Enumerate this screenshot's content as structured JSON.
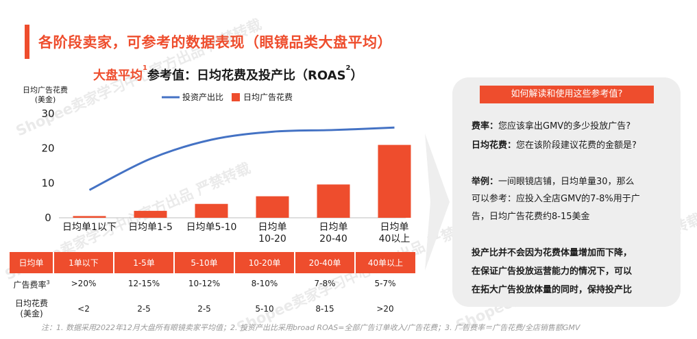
{
  "page_title": "各阶段卖家，可参考的数据表现（眼镜品类大盘平均）",
  "chart_title": {
    "accent": "大盘平均",
    "sup1": "1",
    "rest": "参考值：日均花费及投产比（ROAS",
    "sup2": "2",
    "close": "）"
  },
  "watermark": "Shopee卖家学习中心官方出品 严禁转载",
  "chart_data": {
    "type": "bar",
    "ylabel": [
      "日均广告花费",
      "(美金)"
    ],
    "ylim": [
      0,
      30
    ],
    "yticks": [
      "0",
      "10",
      "20",
      "30"
    ],
    "categories": [
      [
        "日均单1以下"
      ],
      [
        "日均单1-5"
      ],
      [
        "日均单5-10"
      ],
      [
        "日均单",
        "10-20"
      ],
      [
        "日均单",
        "20-40"
      ],
      [
        "日均单",
        "40以上"
      ]
    ],
    "series": [
      {
        "name": "日均广告花费",
        "type": "bar",
        "color": "#ee4d2d",
        "values": [
          0.5,
          2,
          4,
          6.2,
          9.6,
          21
        ]
      },
      {
        "name": "投资产出比",
        "type": "line",
        "color": "#4472c4",
        "values": [
          8,
          17,
          22.5,
          24.8,
          25.3,
          26
        ]
      }
    ],
    "legend_position": "top"
  },
  "table": {
    "header": [
      "日均单",
      "1单以下",
      "1-5单",
      "5-10单",
      "10-20单",
      "20-40单",
      "40单以上"
    ],
    "rows": [
      {
        "label": "广告费率",
        "sup": "3",
        "values": [
          ">20%",
          "12-15%",
          "10-12%",
          "8-10%",
          "7-8%",
          "5-7%"
        ]
      },
      {
        "label": "日均花费",
        "label2": "(美金)",
        "values": [
          "<2",
          "2-5",
          "2-5",
          "5-10",
          "8-15",
          ">20"
        ]
      }
    ]
  },
  "panel": {
    "heading": "如何解读和使用这些参考值?",
    "q1_label": "费率：",
    "q1_text": "您应该拿出GMV的多少投放广告?",
    "q2_label": "日均花费：",
    "q2_text": "您在该阶段建议花费的金额是?",
    "ex_label": "举例：",
    "ex_line1": "一间眼镜店铺，日均单量30，那么",
    "ex_line2": "可以参考：应投入全店GMV的7-8%用于广",
    "ex_line3": "告，日均广告花费约8-15美金",
    "note_line1": "投产比并不会因为花费体量增加而下降，",
    "note_line2": "在保证广告投放运营能力的情况下，可以",
    "note_line3": "在拓大广告投放体量的同时，保持投产比"
  },
  "footnote": "注：1. 数据采用2022年12月大盘所有眼镜卖家平均值；2. 投资产出比采用broad ROAS=全部广告订单收入/广告花费；3. 广告费率＝广告花费/全店销售额GMV"
}
